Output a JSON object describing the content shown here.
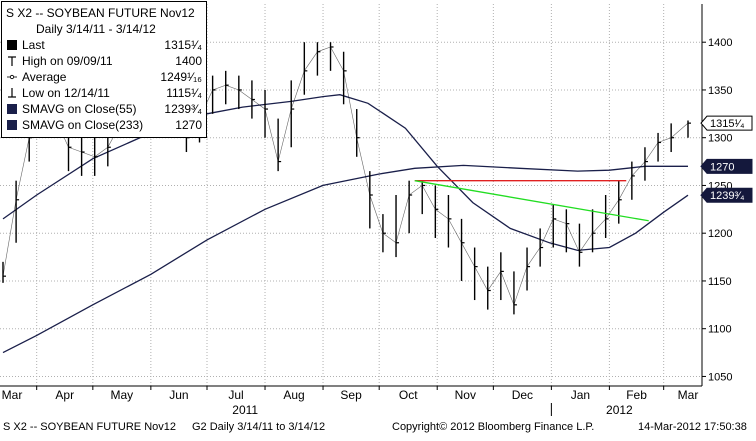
{
  "chart_data": {
    "type": "line",
    "title": "S X2 -- SOYBEAN FUTURE  Nov12",
    "subtitle": "Daily 3/14/11 - 3/14/12",
    "ylim": [
      1040,
      1440
    ],
    "y_ticks": [
      1050,
      1100,
      1150,
      1200,
      1250,
      1300,
      1350,
      1400
    ],
    "x_ticks": [
      "Mar",
      "Apr",
      "May",
      "Jun",
      "Jul",
      "Aug",
      "Sep",
      "Oct",
      "Nov",
      "Dec",
      "Jan",
      "Feb",
      "Mar"
    ],
    "year_labels": [
      "2011",
      "2012"
    ],
    "legend": [
      {
        "label": "Last",
        "value": "1315¹⁄₄",
        "marker": "square",
        "color": "#000000"
      },
      {
        "label": "High on 09/09/11",
        "value": "1400",
        "marker": "high-arrow",
        "color": "#000000"
      },
      {
        "label": "Average",
        "value": "1249¹⁄₁₆",
        "marker": "dot-line",
        "color": "#000000"
      },
      {
        "label": "Low on 12/14/11",
        "value": "1115¹⁄₄",
        "marker": "low-arrow",
        "color": "#000000"
      },
      {
        "label": "SMAVG on Close(55)",
        "value": "1239³⁄₄",
        "marker": "square",
        "color": "#1a1f4a"
      },
      {
        "label": "SMAVG on Close(233)",
        "value": "1270",
        "marker": "square",
        "color": "#1a1f4a"
      }
    ],
    "right_labels": [
      {
        "text": "1315¹⁄₄",
        "y": 1315.25,
        "style": "light"
      },
      {
        "text": "1270",
        "y": 1270,
        "style": "dark"
      },
      {
        "text": "1239³⁄₄",
        "y": 1239.75,
        "style": "dark"
      }
    ],
    "colors": {
      "price": "#000000",
      "sma55": "#1a1f4a",
      "sma233": "#1a1f4a",
      "resistance": "#e02020",
      "trend": "#22dd22",
      "grid": "#b0b0b0"
    },
    "price_series": {
      "name": "Last",
      "x": [
        "2011-03-14",
        "2011-03-21",
        "2011-03-28",
        "2011-04-04",
        "2011-04-11",
        "2011-04-18",
        "2011-04-25",
        "2011-05-02",
        "2011-05-09",
        "2011-05-16",
        "2011-05-23",
        "2011-05-30",
        "2011-06-06",
        "2011-06-13",
        "2011-06-20",
        "2011-06-27",
        "2011-07-04",
        "2011-07-11",
        "2011-07-18",
        "2011-07-25",
        "2011-08-01",
        "2011-08-08",
        "2011-08-15",
        "2011-08-22",
        "2011-08-29",
        "2011-09-05",
        "2011-09-12",
        "2011-09-19",
        "2011-09-26",
        "2011-10-03",
        "2011-10-10",
        "2011-10-17",
        "2011-10-24",
        "2011-10-31",
        "2011-11-07",
        "2011-11-14",
        "2011-11-21",
        "2011-11-28",
        "2011-12-05",
        "2011-12-12",
        "2011-12-19",
        "2011-12-26",
        "2012-01-02",
        "2012-01-09",
        "2012-01-16",
        "2012-01-23",
        "2012-01-30",
        "2012-02-06",
        "2012-02-13",
        "2012-02-20",
        "2012-02-27",
        "2012-03-05",
        "2012-03-14"
      ],
      "close": [
        1155,
        1235,
        1300,
        1330,
        1320,
        1290,
        1285,
        1280,
        1290,
        1315,
        1340,
        1325,
        1355,
        1340,
        1300,
        1320,
        1350,
        1355,
        1350,
        1340,
        1330,
        1275,
        1330,
        1370,
        1390,
        1395,
        1370,
        1300,
        1240,
        1200,
        1190,
        1240,
        1250,
        1225,
        1215,
        1190,
        1165,
        1140,
        1160,
        1125,
        1165,
        1185,
        1215,
        1210,
        1180,
        1200,
        1215,
        1235,
        1260,
        1275,
        1295,
        1300,
        1315.25
      ],
      "high": [
        1170,
        1255,
        1315,
        1350,
        1340,
        1320,
        1305,
        1300,
        1310,
        1330,
        1360,
        1350,
        1375,
        1365,
        1335,
        1340,
        1365,
        1370,
        1365,
        1360,
        1350,
        1320,
        1360,
        1400,
        1400,
        1400,
        1390,
        1330,
        1265,
        1220,
        1240,
        1255,
        1255,
        1250,
        1240,
        1215,
        1185,
        1165,
        1180,
        1160,
        1185,
        1205,
        1230,
        1225,
        1210,
        1225,
        1240,
        1255,
        1275,
        1290,
        1305,
        1315,
        1318
      ],
      "low": [
        1148,
        1190,
        1275,
        1310,
        1300,
        1265,
        1260,
        1260,
        1270,
        1300,
        1320,
        1305,
        1330,
        1315,
        1285,
        1295,
        1325,
        1335,
        1330,
        1320,
        1300,
        1265,
        1290,
        1345,
        1365,
        1370,
        1335,
        1280,
        1205,
        1180,
        1175,
        1200,
        1220,
        1195,
        1185,
        1150,
        1130,
        1120,
        1130,
        1115,
        1140,
        1165,
        1185,
        1180,
        1165,
        1180,
        1195,
        1210,
        1235,
        1255,
        1275,
        1285,
        1300
      ]
    },
    "sma55": {
      "name": "SMAVG on Close(55)",
      "x": [
        "2011-03-14",
        "2011-04-01",
        "2011-05-01",
        "2011-06-01",
        "2011-07-01",
        "2011-07-20",
        "2011-08-15",
        "2011-09-01",
        "2011-09-10",
        "2011-09-25",
        "2011-10-15",
        "2011-11-01",
        "2011-11-20",
        "2011-12-10",
        "2011-12-31",
        "2012-01-15",
        "2012-02-01",
        "2012-02-15",
        "2012-03-01",
        "2012-03-14"
      ],
      "y": [
        1215,
        1240,
        1278,
        1305,
        1325,
        1332,
        1338,
        1343,
        1345,
        1336,
        1310,
        1270,
        1232,
        1205,
        1190,
        1182,
        1185,
        1200,
        1222,
        1239.75
      ]
    },
    "sma233": {
      "name": "SMAVG on Close(233)",
      "x": [
        "2011-03-14",
        "2011-04-01",
        "2011-05-01",
        "2011-06-01",
        "2011-07-01",
        "2011-08-01",
        "2011-09-01",
        "2011-10-01",
        "2011-10-20",
        "2011-11-15",
        "2011-12-15",
        "2012-01-15",
        "2012-02-01",
        "2012-02-20",
        "2012-03-14"
      ],
      "y": [
        1075,
        1093,
        1125,
        1157,
        1193,
        1225,
        1250,
        1262,
        1268,
        1271,
        1268,
        1265,
        1266,
        1270,
        1270
      ]
    },
    "resistance_line": {
      "x": [
        "2011-10-20",
        "2012-02-10"
      ],
      "y": [
        1255,
        1255
      ]
    },
    "trend_line": {
      "x": [
        "2011-10-20",
        "2012-02-22"
      ],
      "y": [
        1255,
        1213
      ]
    }
  },
  "footer": {
    "left": "S X2 -- SOYBEAN FUTURE  Nov12",
    "period": "G2   Daily  3/14/11 to 3/14/12",
    "copyright": "Copyright© 2012 Bloomberg Finance L.P.",
    "timestamp": "14-Mar-2012 17:50:38"
  }
}
